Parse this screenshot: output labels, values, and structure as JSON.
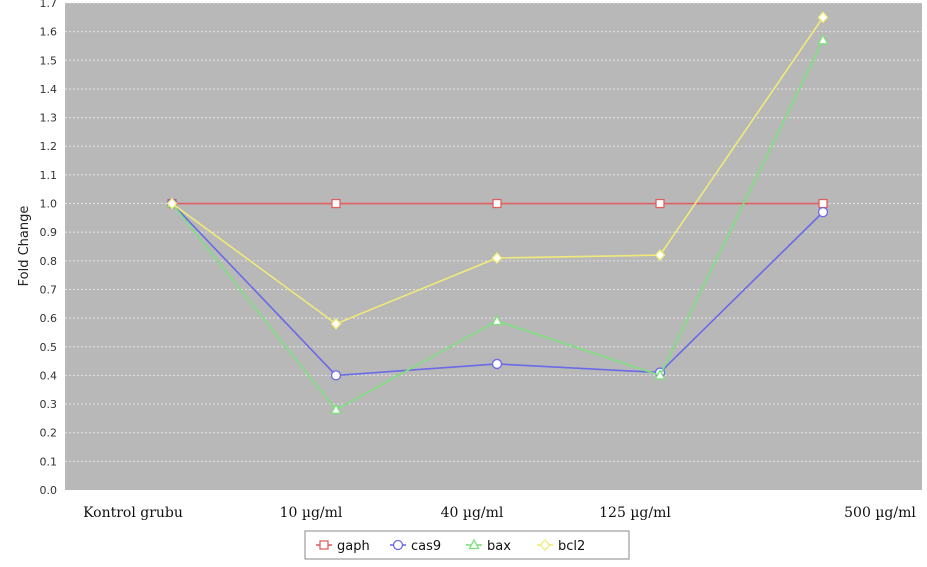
{
  "chart_data": {
    "type": "line",
    "title": "",
    "xlabel": "",
    "ylabel": "Fold Change",
    "categories": [
      "Kontrol grubu",
      "10 µg/ml",
      "40 µg/ml",
      "125 µg/ml",
      "500 µg/ml"
    ],
    "ylim": [
      0.0,
      1.7
    ],
    "yticks": [
      "0.0",
      "0.1",
      "0.2",
      "0.3",
      "0.4",
      "0.5",
      "0.6",
      "0.7",
      "0.8",
      "0.9",
      "1.0",
      "1.1",
      "1.2",
      "1.3",
      "1.4",
      "1.5",
      "1.6",
      "1.7"
    ],
    "grid": true,
    "legend": "bottom",
    "background_color": "#b8b8b8",
    "series": [
      {
        "name": "gaph",
        "marker": "square",
        "color": "#e06060",
        "values": [
          1.0,
          1.0,
          1.0,
          1.0,
          1.0
        ]
      },
      {
        "name": "cas9",
        "marker": "circle",
        "color": "#6a6ae8",
        "values": [
          1.0,
          0.4,
          0.44,
          0.41,
          0.97
        ]
      },
      {
        "name": "bax",
        "marker": "triangle",
        "color": "#7ee07e",
        "values": [
          1.0,
          0.28,
          0.59,
          0.4,
          1.57
        ]
      },
      {
        "name": "bcl2",
        "marker": "diamond",
        "color": "#f0ea7a",
        "values": [
          1.0,
          0.58,
          0.81,
          0.82,
          1.65
        ]
      }
    ]
  }
}
